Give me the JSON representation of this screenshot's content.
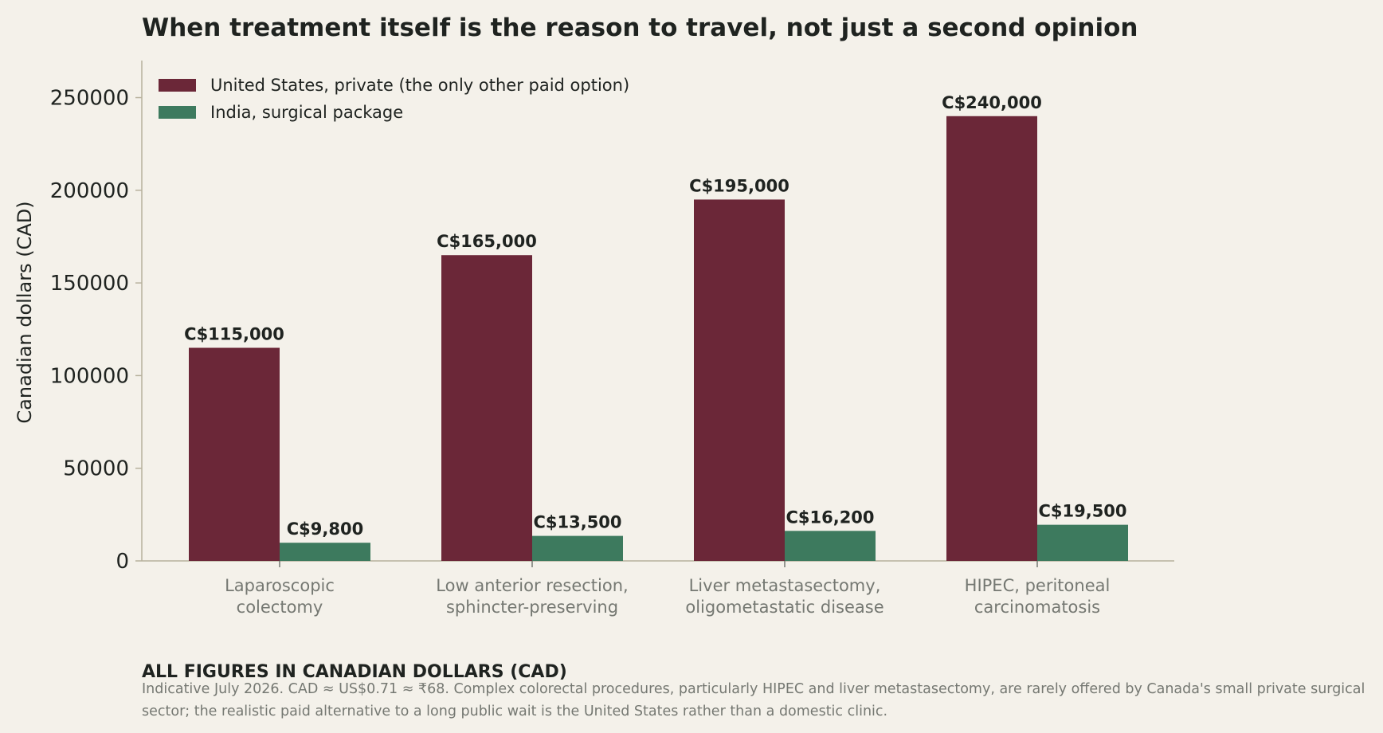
{
  "chart_data": {
    "type": "bar",
    "title": "When treatment itself is the reason to travel, not just a second opinion",
    "ylabel": "Canadian dollars (CAD)",
    "xlabel": "",
    "ylim": [
      0,
      270000
    ],
    "yticks": [
      "0",
      "50000",
      "100000",
      "150000",
      "200000",
      "250000"
    ],
    "yticks_values": [
      0,
      50000,
      100000,
      150000,
      200000,
      250000
    ],
    "categories": [
      [
        "Laparoscopic",
        "colectomy"
      ],
      [
        "Low anterior resection,",
        "sphincter-preserving"
      ],
      [
        "Liver metastasectomy,",
        "oligometastatic disease"
      ],
      [
        "HIPEC, peritoneal",
        "carcinomatosis"
      ]
    ],
    "series": [
      {
        "name": "United States, private (the only other paid option)",
        "color": "#6b2738",
        "values": [
          115000,
          165000,
          195000,
          240000
        ],
        "labels": [
          "C$115,000",
          "C$165,000",
          "C$195,000",
          "C$240,000"
        ]
      },
      {
        "name": "India, surgical package",
        "color": "#3d7a5e",
        "values": [
          9800,
          13500,
          16200,
          19500
        ],
        "labels": [
          "C$9,800",
          "C$13,500",
          "C$16,200",
          "C$19,500"
        ]
      }
    ],
    "legend_position": "top-left",
    "grid": false
  },
  "note": {
    "heading": "ALL FIGURES IN CANADIAN DOLLARS (CAD)",
    "body": "Indicative July 2026. CAD ≈ US$0.71 ≈ ₹68. Complex colorectal procedures, particularly HIPEC and liver metastasectomy, are rarely offered by Canada's small private surgical sector; the realistic paid alternative to a long public wait is the United States rather than a domestic clinic."
  }
}
